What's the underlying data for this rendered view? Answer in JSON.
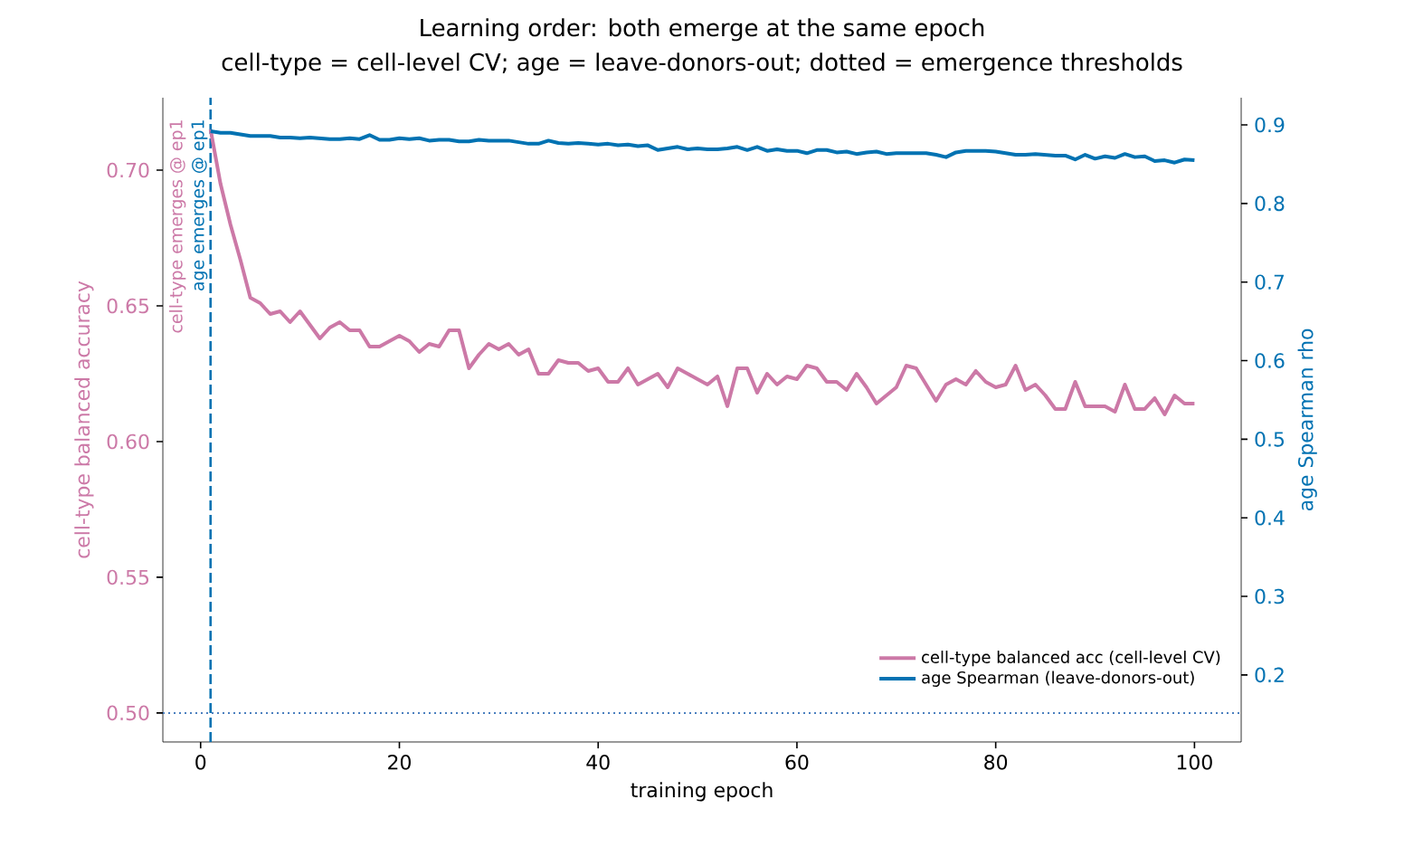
{
  "chart_data": {
    "type": "line",
    "title": "Learning order: both emerge at the same epoch",
    "subtitle": "cell-type = cell-level CV; age = leave-donors-out; dotted = emergence thresholds",
    "xlabel": "training epoch",
    "ylabel": "cell-type balanced accuracy",
    "y2label": "age Spearman rho",
    "x": [
      1,
      2,
      3,
      4,
      5,
      6,
      7,
      8,
      9,
      10,
      11,
      12,
      13,
      14,
      15,
      16,
      17,
      18,
      19,
      20,
      21,
      22,
      23,
      24,
      25,
      26,
      27,
      28,
      29,
      30,
      31,
      32,
      33,
      34,
      35,
      36,
      37,
      38,
      39,
      40,
      41,
      42,
      43,
      44,
      45,
      46,
      47,
      48,
      49,
      50,
      51,
      52,
      53,
      54,
      55,
      56,
      57,
      58,
      59,
      60,
      61,
      62,
      63,
      64,
      65,
      66,
      67,
      68,
      69,
      70,
      71,
      72,
      73,
      74,
      75,
      76,
      77,
      78,
      79,
      80,
      81,
      82,
      83,
      84,
      85,
      86,
      87,
      88,
      89,
      90,
      91,
      92,
      93,
      94,
      95,
      96,
      97,
      98,
      99,
      100
    ],
    "series": [
      {
        "name": "cell-type balanced acc (cell-level CV)",
        "color": "#cc79a7",
        "values": [
          0.715,
          0.695,
          0.68,
          0.667,
          0.653,
          0.651,
          0.647,
          0.648,
          0.644,
          0.648,
          0.643,
          0.638,
          0.642,
          0.644,
          0.641,
          0.641,
          0.635,
          0.635,
          0.637,
          0.639,
          0.637,
          0.633,
          0.636,
          0.635,
          0.641,
          0.641,
          0.627,
          0.632,
          0.636,
          0.634,
          0.636,
          0.632,
          0.634,
          0.625,
          0.625,
          0.63,
          0.629,
          0.629,
          0.626,
          0.627,
          0.622,
          0.622,
          0.627,
          0.621,
          0.623,
          0.625,
          0.62,
          0.627,
          0.625,
          0.623,
          0.621,
          0.624,
          0.613,
          0.627,
          0.627,
          0.618,
          0.625,
          0.621,
          0.624,
          0.623,
          0.628,
          0.627,
          0.622,
          0.622,
          0.619,
          0.625,
          0.62,
          0.614,
          0.617,
          0.62,
          0.628,
          0.627,
          0.621,
          0.615,
          0.621,
          0.623,
          0.621,
          0.626,
          0.622,
          0.62,
          0.621,
          0.628,
          0.619,
          0.621,
          0.617,
          0.612,
          0.612,
          0.622,
          0.613,
          0.613,
          0.613,
          0.611,
          0.621,
          0.612,
          0.612,
          0.616,
          0.61,
          0.617,
          0.614,
          0.614
        ]
      },
      {
        "name": "age Spearman (leave-donors-out)",
        "color": "#0072b2",
        "axis": "y2",
        "values": [
          0.892,
          0.89,
          0.89,
          0.888,
          0.886,
          0.886,
          0.886,
          0.884,
          0.884,
          0.883,
          0.884,
          0.883,
          0.882,
          0.882,
          0.883,
          0.882,
          0.887,
          0.881,
          0.881,
          0.883,
          0.882,
          0.883,
          0.88,
          0.881,
          0.881,
          0.879,
          0.879,
          0.881,
          0.88,
          0.88,
          0.88,
          0.878,
          0.876,
          0.876,
          0.88,
          0.877,
          0.876,
          0.877,
          0.876,
          0.875,
          0.876,
          0.874,
          0.875,
          0.873,
          0.874,
          0.868,
          0.87,
          0.872,
          0.869,
          0.87,
          0.869,
          0.869,
          0.87,
          0.872,
          0.868,
          0.872,
          0.867,
          0.869,
          0.867,
          0.867,
          0.864,
          0.868,
          0.868,
          0.865,
          0.866,
          0.863,
          0.865,
          0.866,
          0.863,
          0.864,
          0.864,
          0.864,
          0.864,
          0.862,
          0.859,
          0.865,
          0.867,
          0.867,
          0.867,
          0.866,
          0.864,
          0.862,
          0.862,
          0.863,
          0.862,
          0.861,
          0.861,
          0.856,
          0.862,
          0.857,
          0.86,
          0.858,
          0.863,
          0.859,
          0.86,
          0.854,
          0.855,
          0.852,
          0.856,
          0.855
        ]
      }
    ],
    "xlim": [
      -3.8,
      104.7
    ],
    "xticks": [
      0,
      20,
      40,
      60,
      80,
      100
    ],
    "ylim": [
      0.4893,
      0.7267
    ],
    "yticks": [
      {
        "value": 0.5,
        "label": "0.50"
      },
      {
        "value": 0.55,
        "label": "0.55"
      },
      {
        "value": 0.6,
        "label": "0.60"
      },
      {
        "value": 0.65,
        "label": "0.65"
      },
      {
        "value": 0.7,
        "label": "0.70"
      }
    ],
    "y2lim": [
      0.1147,
      0.9346
    ],
    "y2ticks": [
      0.2,
      0.3,
      0.4,
      0.5,
      0.6,
      0.7,
      0.8,
      0.9
    ],
    "ref_lines": [
      {
        "axis": "x",
        "value": 1,
        "color": "#0072b2",
        "line_style": "dashed"
      },
      {
        "axis": "y",
        "value": 0.5,
        "color": "#4a7fbf",
        "line_style": "dotted"
      }
    ],
    "annotations": [
      {
        "text": "cell-type emerges @ ep1",
        "x": 1,
        "y": 0.72
      },
      {
        "text": "age emerges @ ep1",
        "x": 1,
        "y": 0.72
      }
    ],
    "legend": "bottom right"
  }
}
